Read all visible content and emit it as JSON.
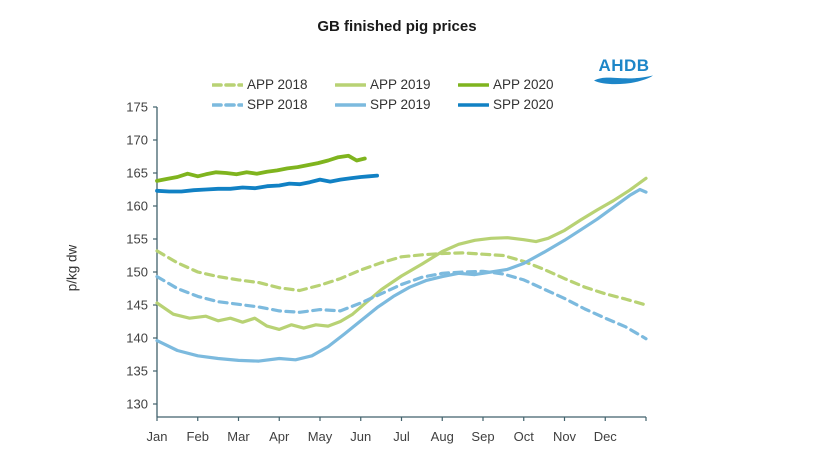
{
  "chart_data": {
    "type": "line",
    "title": "GB finished pig prices",
    "ylabel": "p/kg dw",
    "xlabel": "",
    "ylim": [
      130,
      175
    ],
    "y_ticks": [
      130,
      135,
      140,
      145,
      150,
      155,
      160,
      165,
      170,
      175
    ],
    "x_ticklabels": [
      "Jan",
      "Feb",
      "Mar",
      "Apr",
      "May",
      "Jun",
      "Jul",
      "Aug",
      "Sep",
      "Oct",
      "Nov",
      "Dec"
    ],
    "x_unit": "month (0 = 1 Jan, 12 = 31 Dec)",
    "grid": false,
    "legend_position": "top-center",
    "axis_color": "#41626c",
    "tick_label_color": "#404040",
    "series": [
      {
        "name": "APP 2018",
        "color": "#b8d274",
        "dash": true,
        "width": 3.2,
        "x": [
          0,
          0.5,
          1,
          1.5,
          2,
          2.5,
          3,
          3.5,
          4,
          4.5,
          5,
          5.5,
          6,
          6.5,
          7,
          7.5,
          8,
          8.5,
          9,
          9.5,
          10,
          10.5,
          11,
          11.5,
          12
        ],
        "values": [
          153.2,
          151.4,
          150.0,
          149.3,
          148.8,
          148.4,
          147.6,
          147.2,
          148.0,
          149.0,
          150.3,
          151.4,
          152.3,
          152.6,
          152.8,
          152.9,
          152.7,
          152.5,
          151.6,
          150.4,
          149.0,
          147.7,
          146.7,
          145.9,
          145.0
        ]
      },
      {
        "name": "APP 2019",
        "color": "#b8d274",
        "dash": false,
        "width": 3.2,
        "x": [
          0,
          0.4,
          0.8,
          1.2,
          1.5,
          1.8,
          2.1,
          2.4,
          2.7,
          3,
          3.3,
          3.6,
          3.9,
          4.2,
          4.5,
          4.8,
          5.1,
          5.5,
          6,
          6.5,
          7,
          7.4,
          7.8,
          8.2,
          8.6,
          9,
          9.3,
          9.6,
          10,
          10.4,
          10.8,
          11.2,
          11.6,
          12
        ],
        "values": [
          145.3,
          143.6,
          143.0,
          143.3,
          142.6,
          143.0,
          142.4,
          143.0,
          141.8,
          141.3,
          142.0,
          141.5,
          142.0,
          141.8,
          142.5,
          143.6,
          145.2,
          147.3,
          149.4,
          151.2,
          153.1,
          154.2,
          154.8,
          155.1,
          155.2,
          154.9,
          154.6,
          155.1,
          156.3,
          157.9,
          159.4,
          160.8,
          162.4,
          164.2
        ]
      },
      {
        "name": "APP 2020",
        "color": "#7fb41e",
        "dash": false,
        "width": 3.8,
        "x": [
          0,
          0.25,
          0.5,
          0.75,
          1,
          1.2,
          1.45,
          1.7,
          1.95,
          2.2,
          2.45,
          2.7,
          2.95,
          3.2,
          3.45,
          3.7,
          3.95,
          4.2,
          4.45,
          4.7,
          4.9,
          5.1
        ],
        "values": [
          163.8,
          164.1,
          164.4,
          164.9,
          164.5,
          164.8,
          165.1,
          165.0,
          164.8,
          165.1,
          164.9,
          165.2,
          165.4,
          165.7,
          165.9,
          166.2,
          166.5,
          166.9,
          167.4,
          167.6,
          166.9,
          167.2
        ]
      },
      {
        "name": "SPP 2018",
        "color": "#7cbade",
        "dash": true,
        "width": 3.2,
        "x": [
          0,
          0.5,
          1,
          1.5,
          2,
          2.5,
          3,
          3.5,
          4,
          4.5,
          5,
          5.5,
          6,
          6.5,
          7,
          7.5,
          8,
          8.5,
          9,
          9.5,
          10,
          10.5,
          11,
          11.5,
          12
        ],
        "values": [
          149.3,
          147.5,
          146.3,
          145.5,
          145.1,
          144.7,
          144.1,
          143.9,
          144.3,
          144.1,
          145.3,
          146.7,
          148.1,
          149.2,
          149.8,
          150.0,
          150.1,
          149.7,
          148.8,
          147.4,
          146.0,
          144.4,
          143.0,
          141.7,
          139.9
        ]
      },
      {
        "name": "SPP 2019",
        "color": "#7cbade",
        "dash": false,
        "width": 3.2,
        "x": [
          0,
          0.5,
          1,
          1.5,
          2,
          2.5,
          3,
          3.4,
          3.8,
          4.2,
          4.6,
          5,
          5.4,
          5.8,
          6.2,
          6.6,
          7,
          7.4,
          7.8,
          8.2,
          8.6,
          9,
          9.5,
          10,
          10.4,
          10.8,
          11.2,
          11.6,
          11.85,
          12
        ],
        "values": [
          139.6,
          138.1,
          137.3,
          136.9,
          136.6,
          136.5,
          136.9,
          136.7,
          137.3,
          138.7,
          140.6,
          142.6,
          144.6,
          146.3,
          147.7,
          148.7,
          149.3,
          149.8,
          149.6,
          150.0,
          150.4,
          151.3,
          153.0,
          154.8,
          156.4,
          158.0,
          159.8,
          161.6,
          162.5,
          162.1
        ]
      },
      {
        "name": "SPP 2020",
        "color": "#1181c4",
        "dash": false,
        "width": 3.8,
        "x": [
          0,
          0.3,
          0.6,
          0.9,
          1.2,
          1.5,
          1.8,
          2.1,
          2.4,
          2.7,
          3,
          3.25,
          3.5,
          3.75,
          4,
          4.25,
          4.5,
          4.75,
          5,
          5.2,
          5.4
        ],
        "values": [
          162.3,
          162.2,
          162.2,
          162.4,
          162.5,
          162.6,
          162.6,
          162.8,
          162.7,
          163.0,
          163.1,
          163.4,
          163.3,
          163.6,
          164.0,
          163.7,
          164.0,
          164.2,
          164.4,
          164.5,
          164.6
        ]
      }
    ]
  },
  "logo": {
    "text": "AHDB",
    "color": "#1d86c8"
  }
}
